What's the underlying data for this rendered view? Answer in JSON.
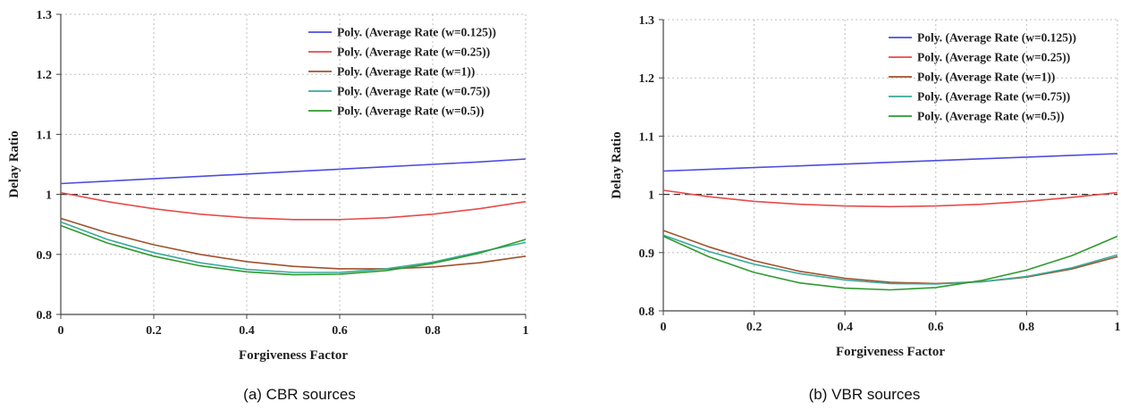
{
  "chart_data": [
    {
      "type": "line",
      "caption": "(a) CBR sources",
      "xlabel": "Forgiveness Factor",
      "ylabel": "Delay Ratio",
      "xlim": [
        0,
        1
      ],
      "ylim": [
        0.8,
        1.3
      ],
      "xticks": [
        "0",
        "0.2",
        "0.4",
        "0.6",
        "0.8",
        "1"
      ],
      "yticks": [
        "0.8",
        "0.9",
        "1",
        "1.1",
        "1.2",
        "1.3"
      ],
      "grid": true,
      "legend_position": "top-right",
      "reference_line": {
        "y": 1.0,
        "style": "dashed"
      },
      "series": [
        {
          "name": "Poly. (Average Rate (w=0.125))",
          "color": "#4d4de0",
          "x": [
            0,
            0.1,
            0.2,
            0.3,
            0.4,
            0.5,
            0.6,
            0.7,
            0.8,
            0.9,
            1
          ],
          "y": [
            1.018,
            1.022,
            1.026,
            1.03,
            1.034,
            1.038,
            1.042,
            1.046,
            1.05,
            1.054,
            1.059
          ]
        },
        {
          "name": "Poly. (Average Rate (w=0.25))",
          "color": "#e84a4a",
          "x": [
            0,
            0.1,
            0.2,
            0.3,
            0.4,
            0.5,
            0.6,
            0.7,
            0.8,
            0.9,
            1
          ],
          "y": [
            1.003,
            0.988,
            0.976,
            0.967,
            0.961,
            0.958,
            0.958,
            0.961,
            0.967,
            0.976,
            0.988
          ]
        },
        {
          "name": "Poly. (Average Rate (w=1))",
          "color": "#a0522d",
          "x": [
            0,
            0.1,
            0.2,
            0.3,
            0.4,
            0.5,
            0.6,
            0.7,
            0.8,
            0.9,
            1
          ],
          "y": [
            0.96,
            0.936,
            0.916,
            0.9,
            0.888,
            0.88,
            0.876,
            0.876,
            0.879,
            0.886,
            0.897
          ]
        },
        {
          "name": "Poly. (Average Rate (w=0.75))",
          "color": "#3aaa9a",
          "x": [
            0,
            0.1,
            0.2,
            0.3,
            0.4,
            0.5,
            0.6,
            0.7,
            0.8,
            0.9,
            1
          ],
          "y": [
            0.954,
            0.925,
            0.903,
            0.886,
            0.875,
            0.87,
            0.87,
            0.876,
            0.887,
            0.904,
            0.92
          ]
        },
        {
          "name": "Poly. (Average Rate (w=0.5))",
          "color": "#2e9a2e",
          "x": [
            0,
            0.1,
            0.2,
            0.3,
            0.4,
            0.5,
            0.6,
            0.7,
            0.8,
            0.9,
            1
          ],
          "y": [
            0.948,
            0.919,
            0.897,
            0.881,
            0.871,
            0.866,
            0.867,
            0.873,
            0.885,
            0.902,
            0.925
          ]
        }
      ]
    },
    {
      "type": "line",
      "caption": "(b) VBR sources",
      "xlabel": "Forgiveness Factor",
      "ylabel": "Delay Ratio",
      "xlim": [
        0,
        1
      ],
      "ylim": [
        0.8,
        1.3
      ],
      "xticks": [
        "0",
        "0.2",
        "0.4",
        "0.6",
        "0.8",
        "1"
      ],
      "yticks": [
        "0.8",
        "0.9",
        "1",
        "1.1",
        "1.2",
        "1.3"
      ],
      "grid": true,
      "legend_position": "top-right",
      "reference_line": {
        "y": 1.0,
        "style": "dashed"
      },
      "series": [
        {
          "name": "Poly. (Average Rate (w=0.125))",
          "color": "#4d4de0",
          "x": [
            0,
            0.1,
            0.2,
            0.3,
            0.4,
            0.5,
            0.6,
            0.7,
            0.8,
            0.9,
            1
          ],
          "y": [
            1.04,
            1.043,
            1.046,
            1.049,
            1.052,
            1.055,
            1.058,
            1.061,
            1.064,
            1.067,
            1.07
          ]
        },
        {
          "name": "Poly. (Average Rate (w=0.25))",
          "color": "#e84a4a",
          "x": [
            0,
            0.1,
            0.2,
            0.3,
            0.4,
            0.5,
            0.6,
            0.7,
            0.8,
            0.9,
            1
          ],
          "y": [
            1.007,
            0.996,
            0.988,
            0.983,
            0.98,
            0.979,
            0.98,
            0.983,
            0.988,
            0.995,
            1.003
          ]
        },
        {
          "name": "Poly. (Average Rate (w=1))",
          "color": "#a0522d",
          "x": [
            0,
            0.1,
            0.2,
            0.3,
            0.4,
            0.5,
            0.6,
            0.7,
            0.8,
            0.9,
            1
          ],
          "y": [
            0.938,
            0.91,
            0.886,
            0.868,
            0.856,
            0.849,
            0.847,
            0.85,
            0.858,
            0.872,
            0.893
          ]
        },
        {
          "name": "Poly. (Average Rate (w=0.75))",
          "color": "#3aaa9a",
          "x": [
            0,
            0.1,
            0.2,
            0.3,
            0.4,
            0.5,
            0.6,
            0.7,
            0.8,
            0.9,
            1
          ],
          "y": [
            0.93,
            0.902,
            0.88,
            0.864,
            0.853,
            0.847,
            0.846,
            0.85,
            0.859,
            0.874,
            0.896
          ]
        },
        {
          "name": "Poly. (Average Rate (w=0.5))",
          "color": "#2e9a2e",
          "x": [
            0,
            0.1,
            0.2,
            0.3,
            0.4,
            0.5,
            0.6,
            0.7,
            0.8,
            0.9,
            1
          ],
          "y": [
            0.928,
            0.893,
            0.866,
            0.848,
            0.839,
            0.836,
            0.84,
            0.852,
            0.87,
            0.895,
            0.928
          ]
        }
      ]
    }
  ]
}
